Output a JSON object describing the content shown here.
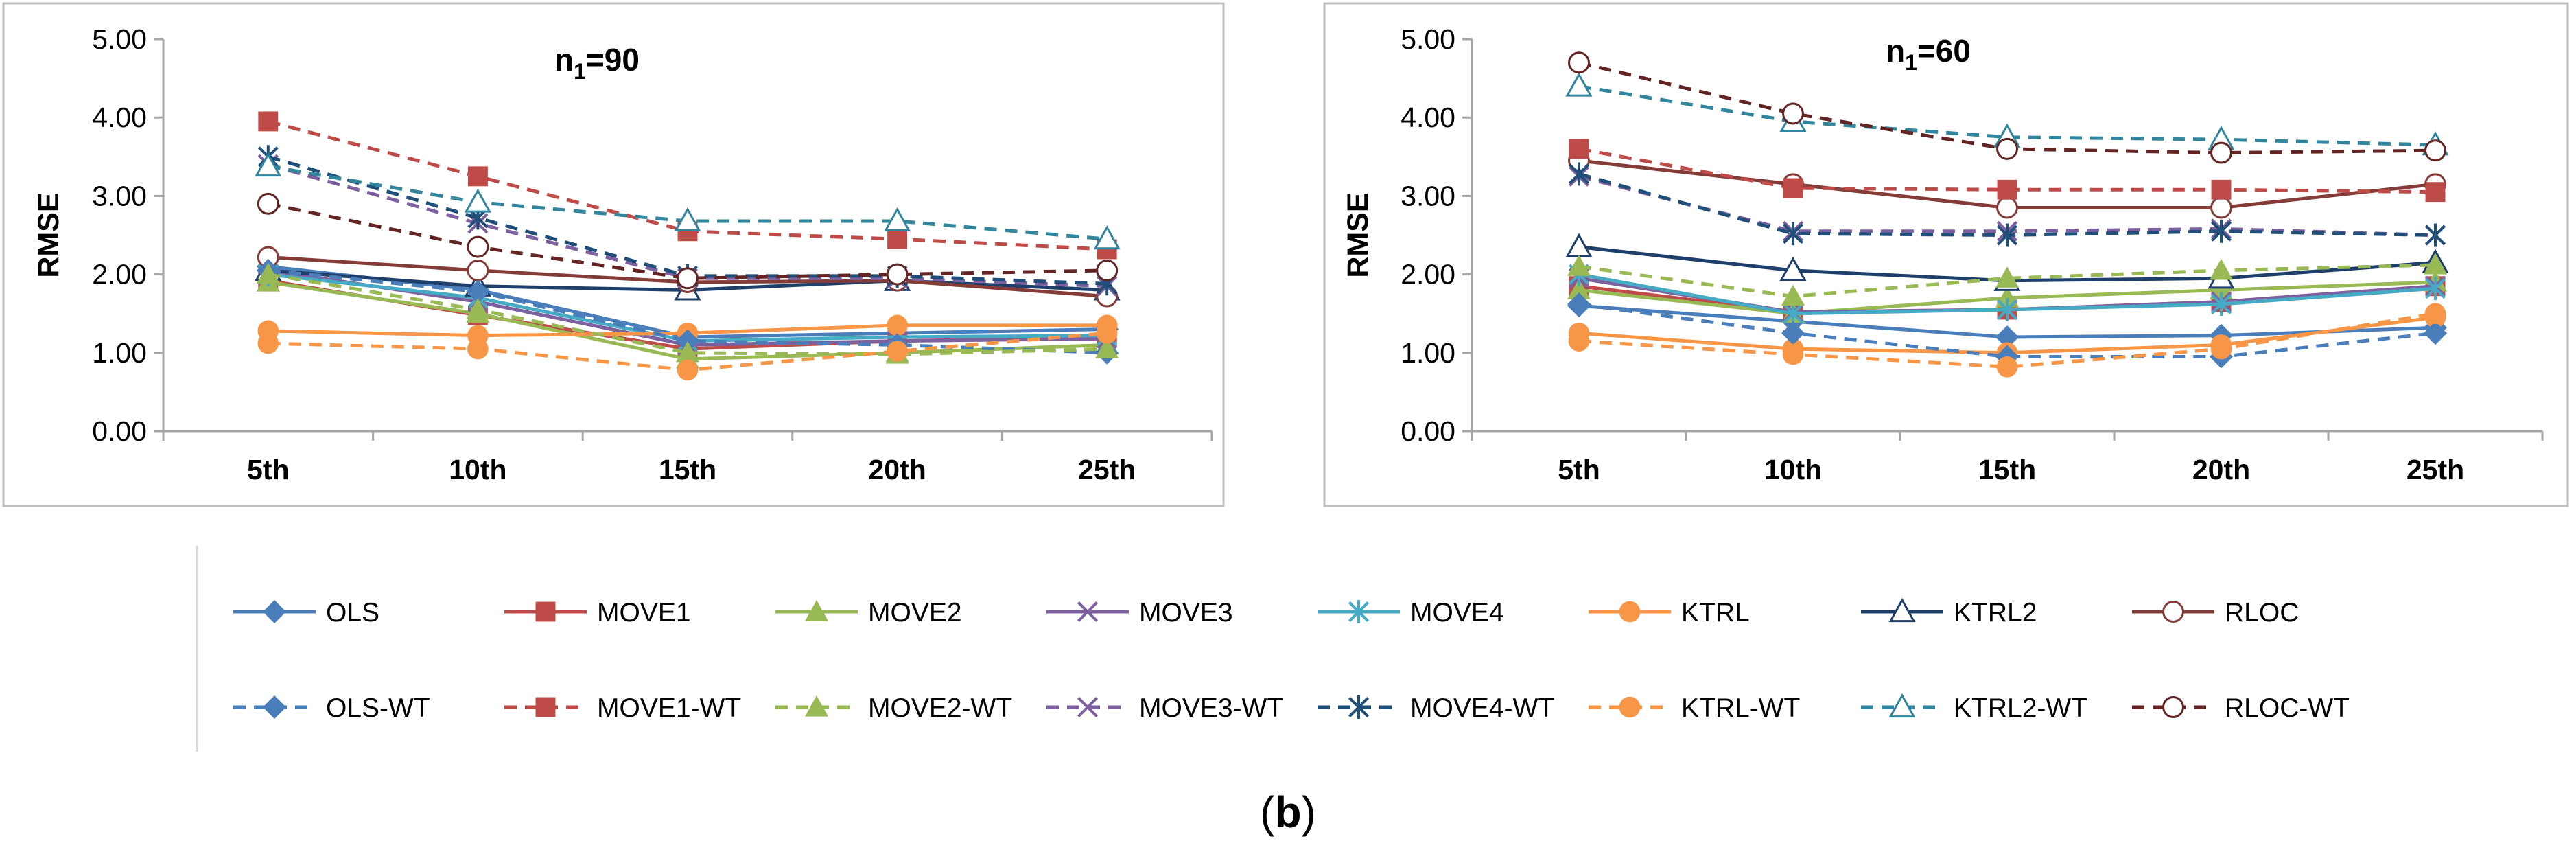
{
  "figure_label": "(b)",
  "chart_data": [
    {
      "type": "line",
      "title": "n1=90",
      "title_main": "n",
      "title_sub": "1",
      "title_rest": "=90",
      "ylabel": "RMSE",
      "xlabel": "",
      "ylim": [
        0,
        5
      ],
      "yticks": [
        "0.00",
        "1.00",
        "2.00",
        "3.00",
        "4.00",
        "5.00"
      ],
      "categories": [
        "5th",
        "10th",
        "15th",
        "20th",
        "25th"
      ],
      "grid": "none",
      "series": [
        {
          "name": "OLS",
          "values": [
            2.1,
            1.8,
            1.2,
            1.25,
            1.3
          ]
        },
        {
          "name": "MOVE1",
          "values": [
            1.92,
            1.48,
            1.05,
            1.15,
            1.2
          ]
        },
        {
          "name": "MOVE2",
          "values": [
            1.9,
            1.5,
            0.92,
            1.0,
            1.1
          ]
        },
        {
          "name": "MOVE3",
          "values": [
            2.05,
            1.65,
            1.1,
            1.15,
            1.18
          ]
        },
        {
          "name": "MOVE4",
          "values": [
            2.0,
            1.7,
            1.15,
            1.2,
            1.22
          ]
        },
        {
          "name": "KTRL",
          "values": [
            1.28,
            1.22,
            1.25,
            1.35,
            1.35
          ]
        },
        {
          "name": "KTRL2",
          "values": [
            2.05,
            1.85,
            1.8,
            1.92,
            1.8
          ]
        },
        {
          "name": "RLOC",
          "values": [
            2.22,
            2.05,
            1.9,
            1.92,
            1.72
          ]
        },
        {
          "name": "OLS-WT",
          "values": [
            2.05,
            1.78,
            1.15,
            1.1,
            1.0
          ]
        },
        {
          "name": "MOVE1-WT",
          "values": [
            3.95,
            3.25,
            2.55,
            2.45,
            2.32
          ]
        },
        {
          "name": "MOVE2-WT",
          "values": [
            2.0,
            1.55,
            1.0,
            0.98,
            1.05
          ]
        },
        {
          "name": "MOVE3-WT",
          "values": [
            3.4,
            2.65,
            1.95,
            1.95,
            1.85
          ]
        },
        {
          "name": "MOVE4-WT",
          "values": [
            3.5,
            2.72,
            1.98,
            1.98,
            1.88
          ]
        },
        {
          "name": "KTRL-WT",
          "values": [
            1.12,
            1.05,
            0.78,
            1.02,
            1.25
          ]
        },
        {
          "name": "KTRL2-WT",
          "values": [
            3.38,
            2.92,
            2.68,
            2.68,
            2.45
          ]
        },
        {
          "name": "RLOC-WT",
          "values": [
            2.9,
            2.35,
            1.95,
            2.0,
            2.05
          ]
        }
      ]
    },
    {
      "type": "line",
      "title": "n1=60",
      "title_main": "n",
      "title_sub": "1",
      "title_rest": "=60",
      "ylabel": "RMSE",
      "xlabel": "",
      "ylim": [
        0,
        5
      ],
      "yticks": [
        "0.00",
        "1.00",
        "2.00",
        "3.00",
        "4.00",
        "5.00"
      ],
      "categories": [
        "5th",
        "10th",
        "15th",
        "20th",
        "25th"
      ],
      "grid": "none",
      "series": [
        {
          "name": "OLS",
          "values": [
            1.6,
            1.4,
            1.2,
            1.22,
            1.32
          ]
        },
        {
          "name": "MOVE1",
          "values": [
            1.85,
            1.52,
            1.55,
            1.65,
            1.85
          ]
        },
        {
          "name": "MOVE2",
          "values": [
            1.8,
            1.5,
            1.7,
            1.8,
            1.9
          ]
        },
        {
          "name": "MOVE3",
          "values": [
            1.95,
            1.52,
            1.55,
            1.65,
            1.85
          ]
        },
        {
          "name": "MOVE4",
          "values": [
            2.0,
            1.5,
            1.55,
            1.62,
            1.82
          ]
        },
        {
          "name": "KTRL",
          "values": [
            1.25,
            1.05,
            1.0,
            1.1,
            1.45
          ]
        },
        {
          "name": "KTRL2",
          "values": [
            2.35,
            2.05,
            1.92,
            1.95,
            2.15
          ]
        },
        {
          "name": "RLOC",
          "values": [
            3.45,
            3.15,
            2.85,
            2.85,
            3.15
          ]
        },
        {
          "name": "OLS-WT",
          "values": [
            1.62,
            1.25,
            0.95,
            0.95,
            1.25
          ]
        },
        {
          "name": "MOVE1-WT",
          "values": [
            3.6,
            3.1,
            3.08,
            3.08,
            3.05
          ]
        },
        {
          "name": "MOVE2-WT",
          "values": [
            2.1,
            1.72,
            1.95,
            2.05,
            2.12
          ]
        },
        {
          "name": "MOVE3-WT",
          "values": [
            3.25,
            2.55,
            2.55,
            2.58,
            2.5
          ]
        },
        {
          "name": "MOVE4-WT",
          "values": [
            3.28,
            2.52,
            2.5,
            2.55,
            2.5
          ]
        },
        {
          "name": "KTRL-WT",
          "values": [
            1.15,
            0.98,
            0.82,
            1.05,
            1.5
          ]
        },
        {
          "name": "KTRL2-WT",
          "values": [
            4.4,
            3.95,
            3.75,
            3.72,
            3.65
          ]
        },
        {
          "name": "RLOC-WT",
          "values": [
            4.7,
            4.05,
            3.6,
            3.55,
            3.58
          ]
        }
      ]
    }
  ],
  "series_styles": {
    "OLS": {
      "color": "#4a7ebb",
      "marker": "diamond",
      "dash": false
    },
    "MOVE1": {
      "color": "#be4b48",
      "marker": "square",
      "dash": false
    },
    "MOVE2": {
      "color": "#98b954",
      "marker": "triangle",
      "dash": false
    },
    "MOVE3": {
      "color": "#7d60a0",
      "marker": "x",
      "dash": false
    },
    "MOVE4": {
      "color": "#46aac5",
      "marker": "star",
      "dash": false
    },
    "KTRL": {
      "color": "#f79646",
      "marker": "circle",
      "dash": false
    },
    "KTRL2": {
      "color": "#1f3f6b",
      "marker": "triangle-open",
      "dash": false
    },
    "RLOC": {
      "color": "#843c39",
      "marker": "circle-open",
      "dash": false
    },
    "OLS-WT": {
      "color": "#4a7ebb",
      "marker": "diamond",
      "dash": true
    },
    "MOVE1-WT": {
      "color": "#be4b48",
      "marker": "square",
      "dash": true
    },
    "MOVE2-WT": {
      "color": "#98b954",
      "marker": "triangle",
      "dash": true
    },
    "MOVE3-WT": {
      "color": "#7d60a0",
      "marker": "x",
      "dash": true
    },
    "MOVE4-WT": {
      "color": "#1f4e79",
      "marker": "star",
      "dash": true
    },
    "KTRL-WT": {
      "color": "#f79646",
      "marker": "circle",
      "dash": true
    },
    "KTRL2-WT": {
      "color": "#31859c",
      "marker": "triangle-open",
      "dash": true
    },
    "RLOC-WT": {
      "color": "#632523",
      "marker": "circle-open",
      "dash": true
    }
  },
  "legend": {
    "placement": "bottom",
    "row1": [
      "OLS",
      "MOVE1",
      "MOVE2",
      "MOVE3",
      "MOVE4",
      "KTRL",
      "KTRL2",
      "RLOC"
    ],
    "row2": [
      "OLS-WT",
      "MOVE1-WT",
      "MOVE2-WT",
      "MOVE3-WT",
      "MOVE4-WT",
      "KTRL-WT",
      "KTRL2-WT",
      "RLOC-WT"
    ]
  }
}
